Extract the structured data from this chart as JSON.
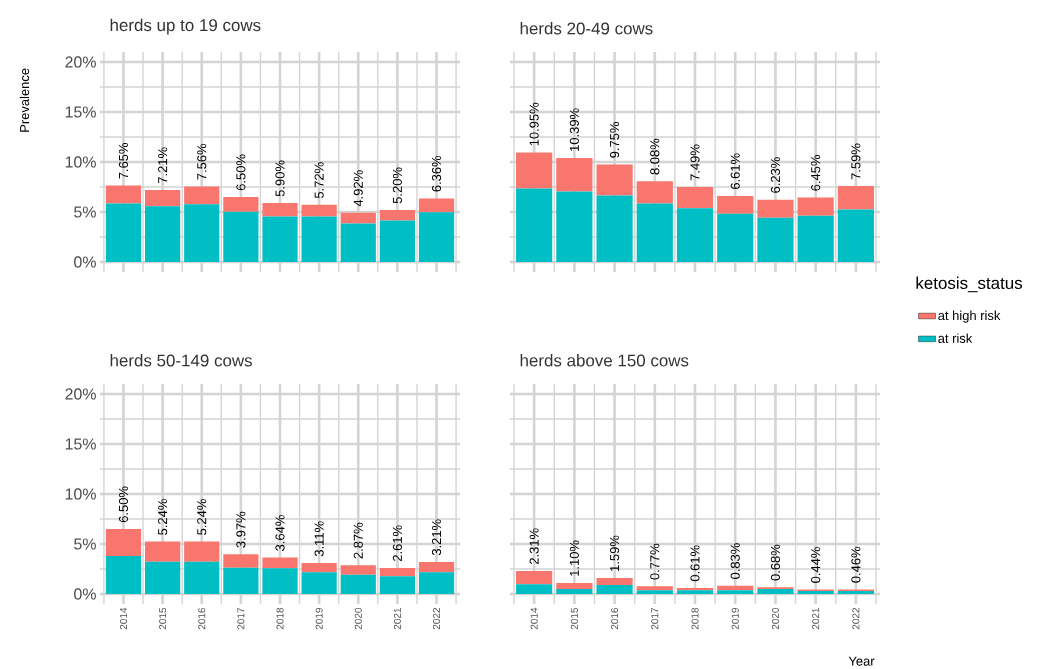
{
  "chart_data": [
    {
      "type": "bar",
      "title": "herds up to 19 cows",
      "ylabel": "Prevalence",
      "stacked": true,
      "tick_labels": "y",
      "grid": true,
      "categories": [
        "2014",
        "2015",
        "2016",
        "2017",
        "2018",
        "2019",
        "2020",
        "2021",
        "2022"
      ],
      "ylim": [
        -1,
        21
      ],
      "yticks": [
        {
          "value": 0,
          "label": "0%"
        },
        {
          "value": 5,
          "label": "5%"
        },
        {
          "value": 10,
          "label": "10%"
        },
        {
          "value": 15,
          "label": "15%"
        },
        {
          "value": 20,
          "label": "20%"
        }
      ],
      "series": [
        {
          "color": "#00bfc4",
          "values": [
            5.84,
            5.57,
            5.78,
            5.03,
            4.56,
            4.56,
            3.85,
            4.16,
            4.97
          ]
        },
        {
          "color": "#f8766d",
          "values": [
            1.81,
            1.64,
            1.78,
            1.47,
            1.34,
            1.16,
            1.07,
            1.04,
            1.39
          ]
        }
      ],
      "totals": [
        "7.65%",
        "7.21%",
        "7.56%",
        "6.50%",
        "5.90%",
        "5.72%",
        "4.92%",
        "5.20%",
        "6.36%"
      ]
    },
    {
      "type": "bar",
      "title": "herds 20-49 cows",
      "stacked": true,
      "tick_labels": false,
      "grid": true,
      "legend": "right",
      "legend_title": "ketosis_status",
      "categories": [
        "2014",
        "2015",
        "2016",
        "2017",
        "2018",
        "2019",
        "2020",
        "2021",
        "2022"
      ],
      "ylim": [
        -1,
        21
      ],
      "yticks": [
        {
          "value": 0,
          "label": null
        },
        {
          "value": 5,
          "label": null
        },
        {
          "value": 10,
          "label": null
        },
        {
          "value": 15,
          "label": null
        },
        {
          "value": 20,
          "label": null
        }
      ],
      "series": [
        {
          "name": "at risk",
          "color": "#00bfc4",
          "values": [
            7.36,
            7.06,
            6.66,
            5.84,
            5.37,
            4.83,
            4.43,
            4.63,
            5.24
          ]
        },
        {
          "name": "at high risk",
          "color": "#f8766d",
          "values": [
            3.59,
            3.33,
            3.09,
            2.24,
            2.12,
            1.78,
            1.8,
            1.82,
            2.35
          ]
        }
      ],
      "totals": [
        "10.95%",
        "10.39%",
        "9.75%",
        "8.08%",
        "7.49%",
        "6.61%",
        "6.23%",
        "6.45%",
        "7.59%"
      ]
    },
    {
      "type": "bar",
      "title": "herds 50-149 cows",
      "stacked": true,
      "grid": true,
      "categories": [
        "2014",
        "2015",
        "2016",
        "2017",
        "2018",
        "2019",
        "2020",
        "2021",
        "2022"
      ],
      "ylim": [
        -1,
        21
      ],
      "yticks": [
        {
          "value": 0,
          "label": "0%"
        },
        {
          "value": 5,
          "label": "5%"
        },
        {
          "value": 10,
          "label": "10%"
        },
        {
          "value": 15,
          "label": "15%"
        },
        {
          "value": 20,
          "label": "20%"
        }
      ],
      "series": [
        {
          "color": "#00bfc4",
          "values": [
            3.8,
            3.23,
            3.23,
            2.63,
            2.57,
            2.17,
            1.93,
            1.77,
            2.17
          ]
        },
        {
          "color": "#f8766d",
          "values": [
            2.7,
            2.01,
            2.01,
            1.34,
            1.07,
            0.94,
            0.94,
            0.84,
            1.04
          ]
        }
      ],
      "totals": [
        "6.50%",
        "5.24%",
        "5.24%",
        "3.97%",
        "3.64%",
        "3.11%",
        "2.87%",
        "2.61%",
        "3.21%"
      ]
    },
    {
      "type": "bar",
      "title": "herds above 150 cows",
      "xlabel": "Year",
      "stacked": true,
      "tick_labels": "x",
      "grid": true,
      "categories": [
        "2014",
        "2015",
        "2016",
        "2017",
        "2018",
        "2019",
        "2020",
        "2021",
        "2022"
      ],
      "ylim": [
        -1,
        21
      ],
      "yticks": [
        {
          "value": 0,
          "label": null
        },
        {
          "value": 5,
          "label": null
        },
        {
          "value": 10,
          "label": null
        },
        {
          "value": 15,
          "label": null
        },
        {
          "value": 20,
          "label": null
        }
      ],
      "series": [
        {
          "color": "#00bfc4",
          "values": [
            0.97,
            0.5,
            0.9,
            0.37,
            0.37,
            0.37,
            0.5,
            0.3,
            0.3
          ]
        },
        {
          "color": "#f8766d",
          "values": [
            1.34,
            0.6,
            0.69,
            0.4,
            0.24,
            0.46,
            0.18,
            0.14,
            0.16
          ]
        }
      ],
      "totals": [
        "2.31%",
        "1.10%",
        "1.59%",
        "0.77%",
        "0.61%",
        "0.83%",
        "0.68%",
        "0.44%",
        "0.46%"
      ]
    }
  ]
}
